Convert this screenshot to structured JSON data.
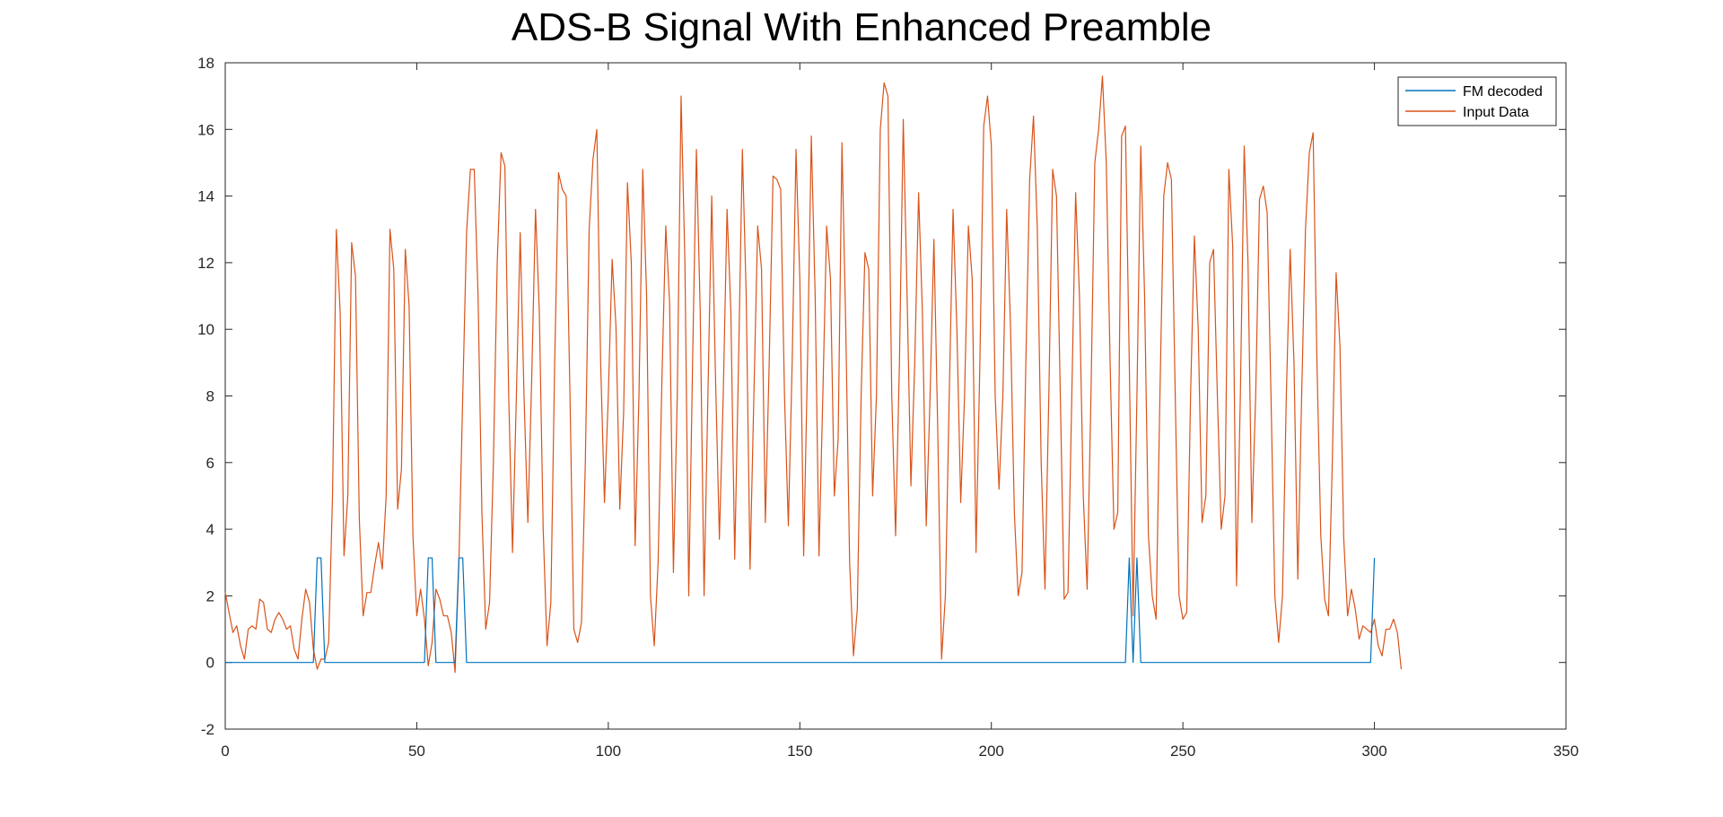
{
  "colors": {
    "fm": "#0072BD",
    "input": "#D95319",
    "axis": "#262626"
  },
  "chart_data": {
    "type": "line",
    "title": "ADS-B Signal With Enhanced Preamble",
    "xlabel": "",
    "ylabel": "",
    "xlim": [
      0,
      350
    ],
    "ylim": [
      -2,
      18
    ],
    "xticks": [
      0,
      50,
      100,
      150,
      200,
      250,
      300,
      350
    ],
    "yticks": [
      -2,
      0,
      2,
      4,
      6,
      8,
      10,
      12,
      14,
      16,
      18
    ],
    "legend_position": "top-right",
    "series": [
      {
        "name": "FM decoded",
        "color": "#0072BD",
        "x": [
          0,
          23,
          24,
          25,
          26,
          52,
          53,
          54,
          55,
          60,
          61,
          62,
          63,
          235,
          236,
          237,
          238,
          239,
          240,
          299,
          300
        ],
        "y": [
          0,
          0,
          3.14,
          3.14,
          0,
          0,
          3.14,
          3.14,
          0,
          0,
          3.14,
          3.14,
          0,
          0,
          3.14,
          0,
          3.14,
          0,
          0,
          0,
          3.14
        ]
      },
      {
        "name": "Input Data",
        "color": "#D95319",
        "x_start": 0,
        "y": [
          2.1,
          1.5,
          0.9,
          1.1,
          0.5,
          0.1,
          1.0,
          1.1,
          1.0,
          1.9,
          1.8,
          1.0,
          0.9,
          1.3,
          1.5,
          1.3,
          1.0,
          1.1,
          0.4,
          0.1,
          1.3,
          2.2,
          1.8,
          0.4,
          -0.2,
          0.1,
          0.1,
          0.6,
          5.0,
          13.0,
          10.5,
          3.2,
          5.0,
          12.6,
          11.6,
          4.3,
          1.4,
          2.1,
          2.1,
          2.9,
          3.6,
          2.8,
          5.0,
          13.0,
          11.8,
          4.6,
          5.8,
          12.4,
          10.7,
          3.8,
          1.4,
          2.2,
          1.3,
          -0.1,
          0.6,
          2.2,
          1.9,
          1.4,
          1.4,
          0.9,
          -0.3,
          3.0,
          8.0,
          12.9,
          14.8,
          14.8,
          11.0,
          4.5,
          1.0,
          1.8,
          6.0,
          12.0,
          15.3,
          14.9,
          8.0,
          3.3,
          8.0,
          12.9,
          8.0,
          4.2,
          8.5,
          13.6,
          10.5,
          4.0,
          0.5,
          1.8,
          9.0,
          14.7,
          14.2,
          14.0,
          8.0,
          1.0,
          0.6,
          1.2,
          6.0,
          13.0,
          15.1,
          16.0,
          9.0,
          4.8,
          8.0,
          12.1,
          10.1,
          4.6,
          7.5,
          14.4,
          12.0,
          3.5,
          8.0,
          14.8,
          11.0,
          2.0,
          0.5,
          3.0,
          8.5,
          13.1,
          10.8,
          2.7,
          8.0,
          17.0,
          12.0,
          2.0,
          9.0,
          15.4,
          10.5,
          2.0,
          8.0,
          14.0,
          8.5,
          3.7,
          8.0,
          13.6,
          10.5,
          3.1,
          9.0,
          15.4,
          11.0,
          2.8,
          8.0,
          13.1,
          11.8,
          4.2,
          9.0,
          14.6,
          14.5,
          14.2,
          8.0,
          4.1,
          9.0,
          15.4,
          11.5,
          3.2,
          9.0,
          15.8,
          11.0,
          3.2,
          8.0,
          13.1,
          11.5,
          5.0,
          6.7,
          15.6,
          10.0,
          3.0,
          0.2,
          1.6,
          8.0,
          12.3,
          11.8,
          5.0,
          8.0,
          16.0,
          17.4,
          17.0,
          8.0,
          3.8,
          9.0,
          16.3,
          11.0,
          5.3,
          9.0,
          14.1,
          10.5,
          4.1,
          8.0,
          12.7,
          7.0,
          0.1,
          2.0,
          8.0,
          13.6,
          10.0,
          4.8,
          8.0,
          13.1,
          11.5,
          3.3,
          9.0,
          16.1,
          17.0,
          15.5,
          8.0,
          5.2,
          8.0,
          13.6,
          10.1,
          4.5,
          2.0,
          2.7,
          9.0,
          14.5,
          16.4,
          13.0,
          6.0,
          2.2,
          8.0,
          14.8,
          14.0,
          8.0,
          1.9,
          2.1,
          8.0,
          14.1,
          11.0,
          5.0,
          2.2,
          8.0,
          15.0,
          16.0,
          17.6,
          15.0,
          9.0,
          4.0,
          4.5,
          15.8,
          16.1,
          9.0,
          1.4,
          8.0,
          15.5,
          11.0,
          3.8,
          2.0,
          1.3,
          8.0,
          14.0,
          15.0,
          14.5,
          8.0,
          2.0,
          1.3,
          1.5,
          8.0,
          12.8,
          10.0,
          4.2,
          5.0,
          12.0,
          12.4,
          8.0,
          4.0,
          5.0,
          14.8,
          12.5,
          2.3,
          8.0,
          15.5,
          12.0,
          4.2,
          8.0,
          13.9,
          14.3,
          13.5,
          8.0,
          2.0,
          0.6,
          2.0,
          8.0,
          12.4,
          9.0,
          2.5,
          8.0,
          13.0,
          15.3,
          15.9,
          9.0,
          3.8,
          1.9,
          1.4,
          6.0,
          11.7,
          9.5,
          3.7,
          1.4,
          2.2,
          1.6,
          0.7,
          1.1,
          1.0,
          0.9,
          1.3,
          0.5,
          0.2,
          1.0,
          1.0,
          1.3,
          0.9,
          -0.2
        ]
      }
    ]
  }
}
